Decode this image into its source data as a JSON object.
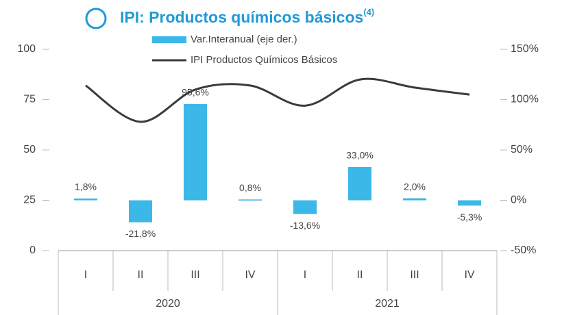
{
  "chart_data": {
    "type": "bar_line",
    "title": "IPI: Productos químicos básicos",
    "title_note": "(4)",
    "categories": [
      "I",
      "II",
      "III",
      "IV",
      "I",
      "II",
      "III",
      "IV"
    ],
    "years": [
      "2020",
      "2021"
    ],
    "series": [
      {
        "name": "Var.Interanual (eje der.)",
        "type": "bar",
        "axis": "y2",
        "color": "#3bb8e8",
        "values": [
          1.8,
          -21.8,
          95.6,
          0.8,
          -13.6,
          33.0,
          2.0,
          -5.3
        ],
        "value_labels": [
          "1,8%",
          "-21,8%",
          "95,6%",
          "0,8%",
          "-13,6%",
          "33,0%",
          "2,0%",
          "-5,3%"
        ]
      },
      {
        "name": "IPI Productos Químicos Básicos",
        "type": "line",
        "axis": "y",
        "color": "#3a3a3a",
        "values": [
          82,
          64,
          80,
          82,
          72,
          85,
          81,
          77.5
        ]
      }
    ],
    "ylim": [
      0,
      100
    ],
    "yticks": [
      0,
      25,
      50,
      75,
      100
    ],
    "y2lim": [
      -50,
      150
    ],
    "y2ticks": [
      {
        "value": -50,
        "label": "-50%"
      },
      {
        "value": 0,
        "label": "0%"
      },
      {
        "value": 50,
        "label": "50%"
      },
      {
        "value": 100,
        "label": "100%"
      },
      {
        "value": 150,
        "label": "150%"
      }
    ],
    "grid": false
  }
}
